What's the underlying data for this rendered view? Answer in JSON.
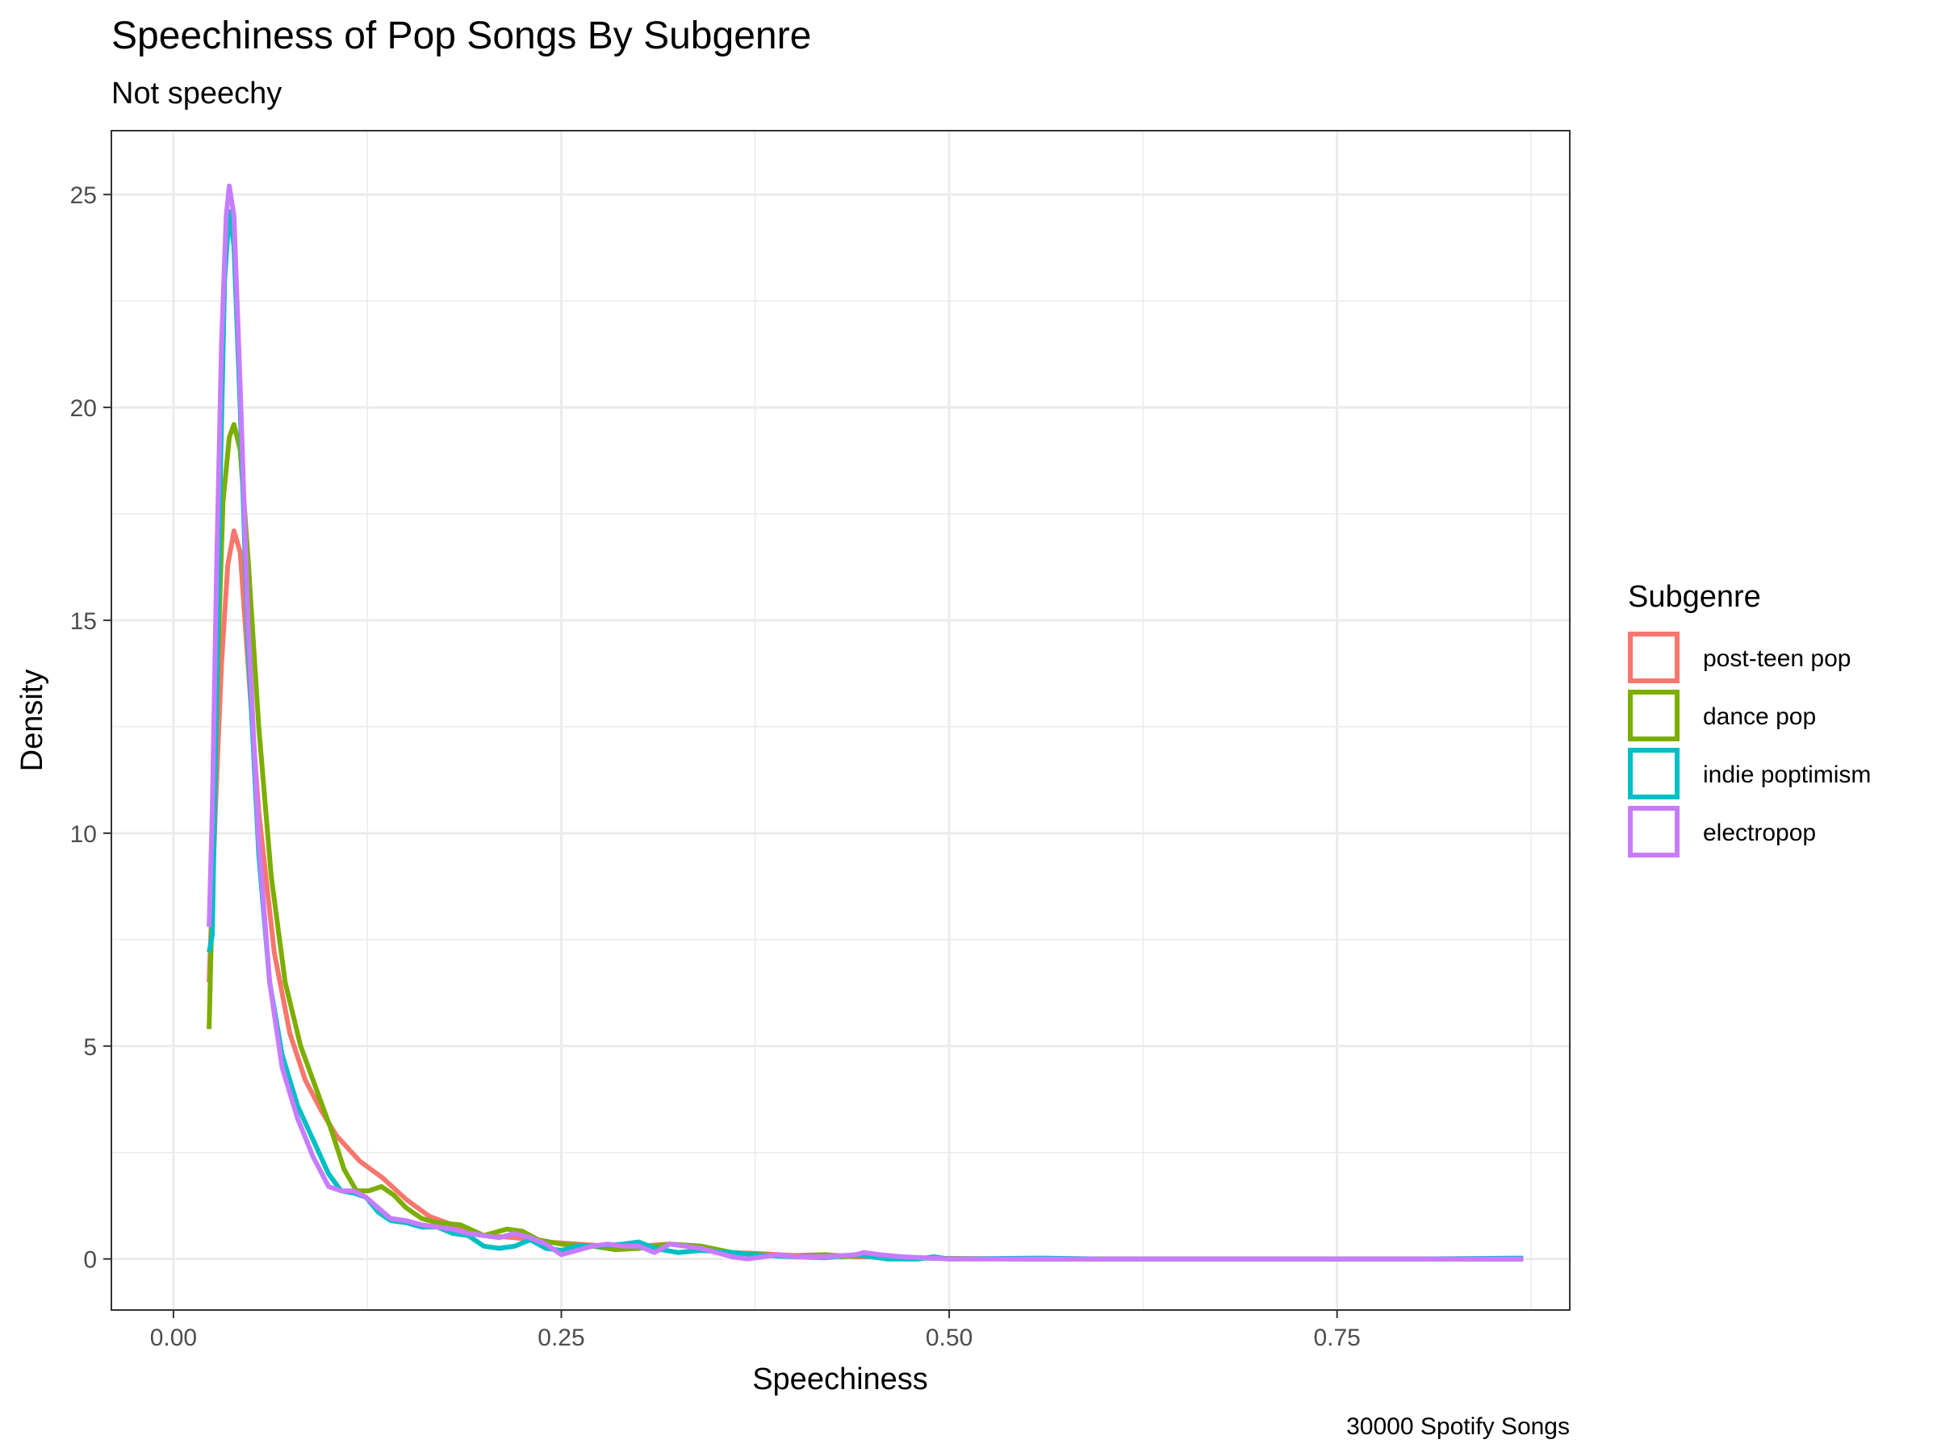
{
  "chart_data": {
    "type": "line",
    "title": "Speechiness of Pop Songs By Subgenre",
    "subtitle": "Not speechy",
    "xlabel": "Speechiness",
    "ylabel": "Density",
    "caption": "30000 Spotify Songs",
    "xlim": [
      -0.04,
      0.9
    ],
    "ylim": [
      -1.2,
      26.5
    ],
    "x_ticks": [
      0.0,
      0.25,
      0.5,
      0.75
    ],
    "x_tick_labels": [
      "0.00",
      "0.25",
      "0.50",
      "0.75"
    ],
    "y_ticks": [
      0,
      5,
      10,
      15,
      20,
      25
    ],
    "y_tick_labels": [
      "0",
      "5",
      "10",
      "15",
      "20",
      "25"
    ],
    "grid": true,
    "legend": {
      "title": "Subgenre",
      "position": "right",
      "entries": [
        "post-teen pop",
        "dance pop",
        "indie poptimism",
        "electropop"
      ]
    },
    "series": [
      {
        "name": "post-teen pop",
        "color": "#F8766D",
        "points": [
          [
            0.023,
            6.5
          ],
          [
            0.027,
            10.5
          ],
          [
            0.031,
            14.0
          ],
          [
            0.035,
            16.3
          ],
          [
            0.039,
            17.1
          ],
          [
            0.043,
            16.6
          ],
          [
            0.048,
            14.0
          ],
          [
            0.055,
            10.5
          ],
          [
            0.065,
            7.2
          ],
          [
            0.075,
            5.3
          ],
          [
            0.085,
            4.2
          ],
          [
            0.095,
            3.5
          ],
          [
            0.105,
            2.9
          ],
          [
            0.12,
            2.3
          ],
          [
            0.135,
            1.9
          ],
          [
            0.15,
            1.4
          ],
          [
            0.165,
            1.0
          ],
          [
            0.18,
            0.8
          ],
          [
            0.2,
            0.55
          ],
          [
            0.22,
            0.5
          ],
          [
            0.24,
            0.4
          ],
          [
            0.26,
            0.35
          ],
          [
            0.28,
            0.3
          ],
          [
            0.3,
            0.3
          ],
          [
            0.32,
            0.35
          ],
          [
            0.34,
            0.25
          ],
          [
            0.36,
            0.15
          ],
          [
            0.38,
            0.12
          ],
          [
            0.4,
            0.08
          ],
          [
            0.42,
            0.1
          ],
          [
            0.44,
            0.05
          ],
          [
            0.46,
            0.05
          ],
          [
            0.48,
            0.02
          ],
          [
            0.5,
            0.01
          ],
          [
            0.55,
            0.0
          ],
          [
            0.6,
            0.0
          ],
          [
            0.7,
            0.0
          ],
          [
            0.8,
            0.0
          ],
          [
            0.87,
            0.0
          ]
        ]
      },
      {
        "name": "dance pop",
        "color": "#7CAE00",
        "points": [
          [
            0.023,
            5.4
          ],
          [
            0.026,
            10.0
          ],
          [
            0.029,
            14.5
          ],
          [
            0.032,
            17.8
          ],
          [
            0.036,
            19.3
          ],
          [
            0.039,
            19.6
          ],
          [
            0.043,
            19.0
          ],
          [
            0.048,
            16.5
          ],
          [
            0.055,
            12.5
          ],
          [
            0.063,
            9.0
          ],
          [
            0.072,
            6.5
          ],
          [
            0.082,
            5.0
          ],
          [
            0.092,
            4.0
          ],
          [
            0.102,
            3.0
          ],
          [
            0.11,
            2.1
          ],
          [
            0.118,
            1.6
          ],
          [
            0.126,
            1.6
          ],
          [
            0.134,
            1.7
          ],
          [
            0.142,
            1.5
          ],
          [
            0.15,
            1.2
          ],
          [
            0.16,
            0.95
          ],
          [
            0.17,
            0.85
          ],
          [
            0.185,
            0.8
          ],
          [
            0.2,
            0.55
          ],
          [
            0.215,
            0.7
          ],
          [
            0.225,
            0.65
          ],
          [
            0.235,
            0.45
          ],
          [
            0.25,
            0.35
          ],
          [
            0.27,
            0.3
          ],
          [
            0.285,
            0.22
          ],
          [
            0.3,
            0.25
          ],
          [
            0.32,
            0.35
          ],
          [
            0.34,
            0.3
          ],
          [
            0.36,
            0.15
          ],
          [
            0.38,
            0.1
          ],
          [
            0.4,
            0.05
          ],
          [
            0.42,
            0.1
          ],
          [
            0.43,
            0.05
          ],
          [
            0.45,
            0.08
          ],
          [
            0.47,
            0.03
          ],
          [
            0.5,
            0.01
          ],
          [
            0.55,
            0.0
          ],
          [
            0.7,
            0.0
          ],
          [
            0.87,
            0.0
          ]
        ]
      },
      {
        "name": "indie poptimism",
        "color": "#00BFC4",
        "points": [
          [
            0.023,
            7.2
          ],
          [
            0.025,
            7.6
          ],
          [
            0.027,
            11.5
          ],
          [
            0.03,
            18.0
          ],
          [
            0.033,
            23.0
          ],
          [
            0.036,
            24.6
          ],
          [
            0.039,
            23.8
          ],
          [
            0.043,
            20.0
          ],
          [
            0.048,
            14.5
          ],
          [
            0.055,
            9.5
          ],
          [
            0.062,
            6.5
          ],
          [
            0.07,
            4.8
          ],
          [
            0.08,
            3.6
          ],
          [
            0.09,
            2.8
          ],
          [
            0.1,
            2.0
          ],
          [
            0.108,
            1.6
          ],
          [
            0.116,
            1.55
          ],
          [
            0.124,
            1.45
          ],
          [
            0.132,
            1.1
          ],
          [
            0.14,
            0.9
          ],
          [
            0.15,
            0.85
          ],
          [
            0.16,
            0.75
          ],
          [
            0.17,
            0.75
          ],
          [
            0.18,
            0.6
          ],
          [
            0.19,
            0.55
          ],
          [
            0.2,
            0.3
          ],
          [
            0.21,
            0.25
          ],
          [
            0.22,
            0.3
          ],
          [
            0.23,
            0.45
          ],
          [
            0.24,
            0.25
          ],
          [
            0.25,
            0.2
          ],
          [
            0.26,
            0.3
          ],
          [
            0.275,
            0.3
          ],
          [
            0.29,
            0.35
          ],
          [
            0.3,
            0.4
          ],
          [
            0.31,
            0.25
          ],
          [
            0.325,
            0.15
          ],
          [
            0.34,
            0.2
          ],
          [
            0.36,
            0.15
          ],
          [
            0.38,
            0.08
          ],
          [
            0.4,
            0.05
          ],
          [
            0.42,
            0.03
          ],
          [
            0.44,
            0.1
          ],
          [
            0.46,
            0.0
          ],
          [
            0.48,
            0.0
          ],
          [
            0.49,
            0.05
          ],
          [
            0.5,
            0.0
          ],
          [
            0.56,
            0.02
          ],
          [
            0.6,
            0.0
          ],
          [
            0.7,
            0.0
          ],
          [
            0.8,
            0.0
          ],
          [
            0.87,
            0.02
          ]
        ]
      },
      {
        "name": "electropop",
        "color": "#C77CFF",
        "points": [
          [
            0.023,
            7.8
          ],
          [
            0.025,
            10.5
          ],
          [
            0.028,
            16.5
          ],
          [
            0.031,
            21.5
          ],
          [
            0.034,
            24.5
          ],
          [
            0.036,
            25.2
          ],
          [
            0.039,
            24.5
          ],
          [
            0.043,
            20.5
          ],
          [
            0.048,
            15.0
          ],
          [
            0.055,
            9.8
          ],
          [
            0.062,
            6.5
          ],
          [
            0.07,
            4.5
          ],
          [
            0.08,
            3.3
          ],
          [
            0.09,
            2.4
          ],
          [
            0.1,
            1.7
          ],
          [
            0.108,
            1.6
          ],
          [
            0.116,
            1.6
          ],
          [
            0.124,
            1.45
          ],
          [
            0.132,
            1.2
          ],
          [
            0.14,
            0.95
          ],
          [
            0.15,
            0.9
          ],
          [
            0.16,
            0.8
          ],
          [
            0.17,
            0.75
          ],
          [
            0.18,
            0.7
          ],
          [
            0.19,
            0.6
          ],
          [
            0.2,
            0.55
          ],
          [
            0.21,
            0.5
          ],
          [
            0.22,
            0.6
          ],
          [
            0.23,
            0.5
          ],
          [
            0.24,
            0.35
          ],
          [
            0.25,
            0.1
          ],
          [
            0.26,
            0.2
          ],
          [
            0.27,
            0.3
          ],
          [
            0.28,
            0.35
          ],
          [
            0.29,
            0.3
          ],
          [
            0.3,
            0.3
          ],
          [
            0.31,
            0.15
          ],
          [
            0.32,
            0.35
          ],
          [
            0.33,
            0.3
          ],
          [
            0.34,
            0.25
          ],
          [
            0.35,
            0.15
          ],
          [
            0.36,
            0.05
          ],
          [
            0.37,
            0.0
          ],
          [
            0.38,
            0.05
          ],
          [
            0.39,
            0.1
          ],
          [
            0.4,
            0.05
          ],
          [
            0.42,
            0.05
          ],
          [
            0.44,
            0.1
          ],
          [
            0.445,
            0.15
          ],
          [
            0.455,
            0.1
          ],
          [
            0.47,
            0.05
          ],
          [
            0.5,
            0.0
          ],
          [
            0.55,
            0.0
          ],
          [
            0.6,
            0.0
          ],
          [
            0.7,
            0.0
          ],
          [
            0.8,
            0.0
          ],
          [
            0.87,
            0.0
          ]
        ]
      }
    ]
  }
}
